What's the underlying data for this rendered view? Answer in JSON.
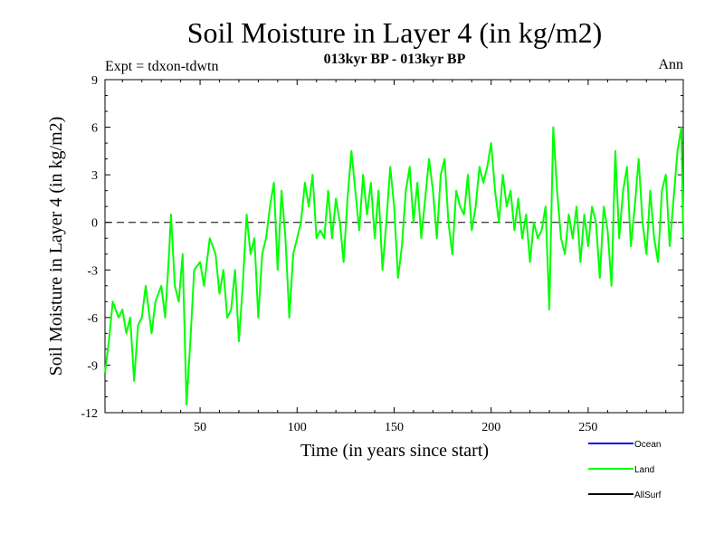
{
  "chart_data": {
    "type": "line",
    "title": "Soil Moisture in Layer 4 (in kg/m2)",
    "subtitle": "013kyr BP - 013kyr BP",
    "left_label": "Expt = tdxon-tdwtn",
    "right_label": "Ann",
    "xlabel": "Time (in years since start)",
    "ylabel": "Soil Moisture in Layer 4 (in kg/m2)",
    "xlim": [
      1,
      299
    ],
    "ylim": [
      -12,
      9
    ],
    "x_ticks": [
      50,
      100,
      150,
      200,
      250
    ],
    "y_ticks": [
      -12,
      -9,
      -6,
      -3,
      0,
      3,
      6,
      9
    ],
    "zero_line": "dashed",
    "grid": false,
    "legend_position": "bottom-right",
    "series": [
      {
        "name": "Ocean",
        "color": "#0000ff",
        "values": []
      },
      {
        "name": "Land",
        "color": "#00ff00",
        "x": [
          1,
          3,
          5,
          8,
          10,
          12,
          14,
          16,
          18,
          20,
          22,
          25,
          27,
          30,
          32,
          34,
          35,
          37,
          39,
          41,
          43,
          45,
          47,
          50,
          52,
          55,
          58,
          60,
          62,
          64,
          66,
          68,
          70,
          72,
          74,
          76,
          78,
          80,
          82,
          84,
          86,
          88,
          90,
          92,
          94,
          96,
          98,
          100,
          102,
          104,
          106,
          108,
          110,
          112,
          114,
          116,
          118,
          120,
          122,
          124,
          126,
          128,
          130,
          132,
          134,
          136,
          138,
          140,
          142,
          144,
          146,
          148,
          150,
          152,
          154,
          156,
          158,
          160,
          162,
          164,
          166,
          168,
          170,
          172,
          174,
          176,
          178,
          180,
          182,
          184,
          186,
          188,
          190,
          192,
          194,
          196,
          198,
          200,
          202,
          204,
          206,
          208,
          210,
          212,
          214,
          216,
          218,
          220,
          222,
          224,
          226,
          228,
          230,
          232,
          234,
          236,
          238,
          240,
          242,
          244,
          246,
          248,
          250,
          252,
          254,
          256,
          258,
          260,
          262,
          264,
          266,
          268,
          270,
          272,
          274,
          276,
          278,
          280,
          282,
          284,
          286,
          288,
          290,
          292,
          294,
          296,
          298,
          299
        ],
        "values": [
          -9.5,
          -7.5,
          -5.0,
          -6.0,
          -5.5,
          -7.0,
          -6.0,
          -10.0,
          -6.5,
          -6.0,
          -4.0,
          -7.0,
          -5.0,
          -4.0,
          -6.0,
          -2.0,
          0.5,
          -4.0,
          -5.0,
          -2.0,
          -11.5,
          -7.5,
          -3.0,
          -2.5,
          -4.0,
          -1.0,
          -2.0,
          -4.5,
          -3.0,
          -6.0,
          -5.5,
          -3.0,
          -7.5,
          -4.0,
          0.5,
          -2.0,
          -1.0,
          -6.0,
          -2.0,
          -1.0,
          1.0,
          2.5,
          -3.0,
          2.0,
          -1.0,
          -6.0,
          -2.0,
          -1.0,
          0.0,
          2.5,
          1.0,
          3.0,
          -1.0,
          -0.5,
          -1.0,
          2.0,
          -1.0,
          1.5,
          0.0,
          -2.5,
          1.5,
          4.5,
          2.0,
          -0.5,
          3.0,
          0.5,
          2.5,
          -1.0,
          2.0,
          -3.0,
          0.0,
          3.5,
          1.0,
          -3.5,
          -1.5,
          2.0,
          3.5,
          0.0,
          2.5,
          -1.0,
          1.5,
          4.0,
          2.0,
          -1.0,
          3.0,
          4.0,
          0.0,
          -2.0,
          2.0,
          1.0,
          0.5,
          3.0,
          -0.5,
          1.0,
          3.5,
          2.5,
          3.5,
          5.0,
          2.0,
          0.0,
          3.0,
          1.0,
          2.0,
          -0.5,
          1.5,
          -1.0,
          0.5,
          -2.5,
          0.0,
          -1.0,
          -0.5,
          1.0,
          -5.5,
          6.0,
          2.0,
          -1.0,
          -2.0,
          0.5,
          -1.0,
          1.0,
          -2.5,
          0.5,
          -1.5,
          1.0,
          0.0,
          -3.5,
          1.0,
          -0.5,
          -4.0,
          4.5,
          -1.0,
          2.0,
          3.5,
          -1.5,
          1.0,
          4.0,
          0.0,
          -2.0,
          2.0,
          -1.0,
          -2.5,
          2.0,
          3.0,
          -1.5,
          1.5,
          4.5,
          6.0,
          -1.0
        ]
      },
      {
        "name": "AllSurf",
        "color": "#000000",
        "values": []
      }
    ]
  }
}
